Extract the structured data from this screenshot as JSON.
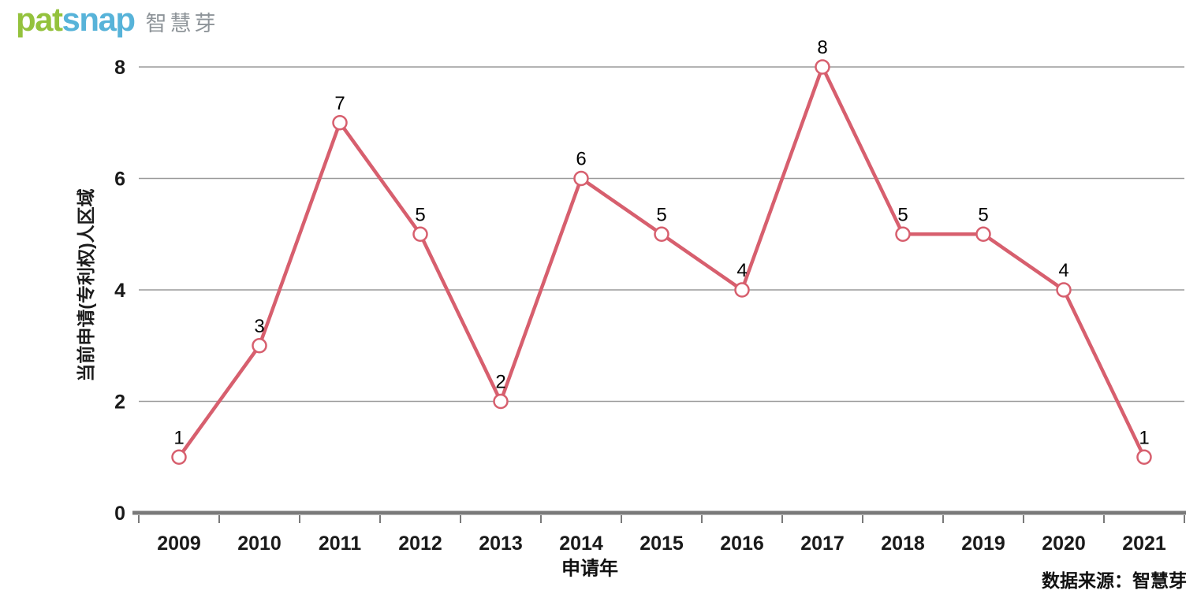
{
  "brand": {
    "logo_text_en_1": "pat",
    "logo_text_en_2": "snap",
    "logo_text_cn": "智慧芽",
    "colors": {
      "pat_green": "#94c23d",
      "snap_blue": "#57b3d9",
      "cn_gray": "#8e9499"
    }
  },
  "chart_data": {
    "type": "line",
    "categories": [
      "2009",
      "2010",
      "2011",
      "2012",
      "2013",
      "2014",
      "2015",
      "2016",
      "2017",
      "2018",
      "2019",
      "2020",
      "2021"
    ],
    "values": [
      1,
      3,
      7,
      5,
      2,
      6,
      5,
      4,
      8,
      5,
      5,
      4,
      1
    ],
    "title": "",
    "xlabel": "申请年",
    "ylabel": "当前申请(专利权)人区域",
    "ylim": [
      0,
      8
    ],
    "yticks": [
      0,
      2,
      4,
      6,
      8
    ],
    "grid": true,
    "legend_position": "none",
    "data_labels": true,
    "colors": {
      "line": "#d75f6e",
      "marker_fill": "#ffffff",
      "grid_line": "#9a9a9a",
      "axis_line": "#7a7a7a",
      "label_text": "#000000",
      "tick_text": "#1a1a1a"
    },
    "marker": "open-circle"
  },
  "footer": {
    "source": "数据来源：智慧芽"
  }
}
